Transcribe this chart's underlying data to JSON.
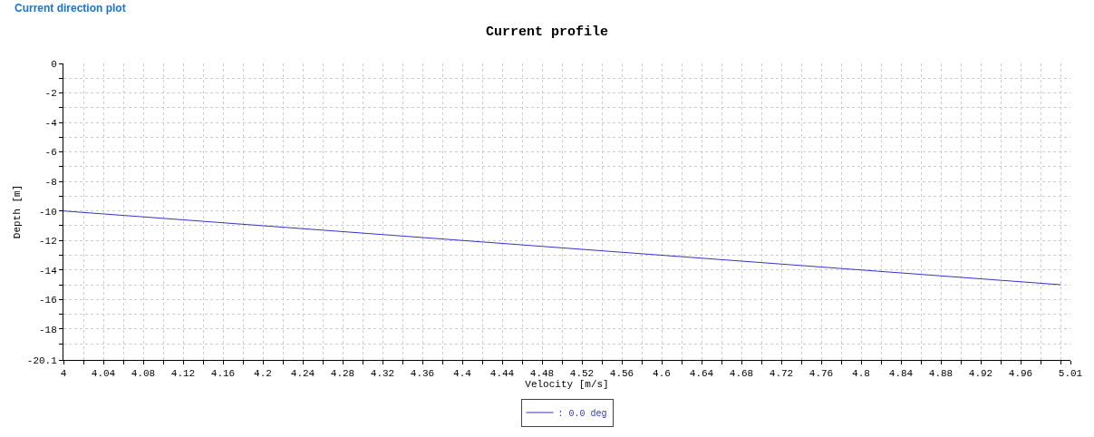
{
  "chart_data": {
    "type": "line",
    "title": "Current profile",
    "xlabel": "Velocity [m/s]",
    "ylabel": "Depth [m]",
    "annotations": [
      "Current direction plot"
    ],
    "x": [
      4,
      5
    ],
    "series": [
      {
        "name": ": 0.0 deg",
        "color": "#3333cc",
        "values": [
          -10,
          -15
        ]
      }
    ],
    "xlim": [
      4,
      5.01
    ],
    "ylim": [
      -20.1,
      0
    ],
    "xticks": [
      4,
      {
        "value": 4.02,
        "label": null
      },
      4.04,
      {
        "value": 4.06,
        "label": null
      },
      4.08,
      {
        "value": 4.1,
        "label": null
      },
      4.12,
      {
        "value": 4.14,
        "label": null
      },
      4.16,
      {
        "value": 4.18,
        "label": null
      },
      4.2,
      {
        "value": 4.22,
        "label": null
      },
      4.24,
      {
        "value": 4.26,
        "label": null
      },
      4.28,
      {
        "value": 4.3,
        "label": null
      },
      4.32,
      {
        "value": 4.34,
        "label": null
      },
      4.36,
      {
        "value": 4.38,
        "label": null
      },
      4.4,
      {
        "value": 4.42,
        "label": null
      },
      4.44,
      {
        "value": 4.46,
        "label": null
      },
      4.48,
      {
        "value": 4.5,
        "label": null
      },
      4.52,
      {
        "value": 4.54,
        "label": null
      },
      4.56,
      {
        "value": 4.58,
        "label": null
      },
      4.6,
      {
        "value": 4.62,
        "label": null
      },
      4.64,
      {
        "value": 4.66,
        "label": null
      },
      4.68,
      {
        "value": 4.7,
        "label": null
      },
      4.72,
      {
        "value": 4.74,
        "label": null
      },
      4.76,
      {
        "value": 4.78,
        "label": null
      },
      4.8,
      {
        "value": 4.82,
        "label": null
      },
      4.84,
      {
        "value": 4.86,
        "label": null
      },
      4.88,
      {
        "value": 4.9,
        "label": null
      },
      4.92,
      {
        "value": 4.94,
        "label": null
      },
      4.96,
      {
        "value": 4.98,
        "label": null
      },
      {
        "value": 5.0,
        "label": null
      },
      5.01
    ],
    "yticks": [
      0,
      {
        "value": -1,
        "label": null
      },
      -2,
      {
        "value": -3,
        "label": null
      },
      -4,
      {
        "value": -5,
        "label": null
      },
      -6,
      {
        "value": -7,
        "label": null
      },
      -8,
      {
        "value": -9,
        "label": null
      },
      -10,
      {
        "value": -11,
        "label": null
      },
      -12,
      {
        "value": -13,
        "label": null
      },
      -14,
      {
        "value": -15,
        "label": null
      },
      -16,
      {
        "value": -17,
        "label": null
      },
      -18,
      {
        "value": -19,
        "label": null
      },
      -20.1
    ],
    "grid": true,
    "legend": "bottom",
    "marker": "none",
    "line_style": "solid"
  }
}
